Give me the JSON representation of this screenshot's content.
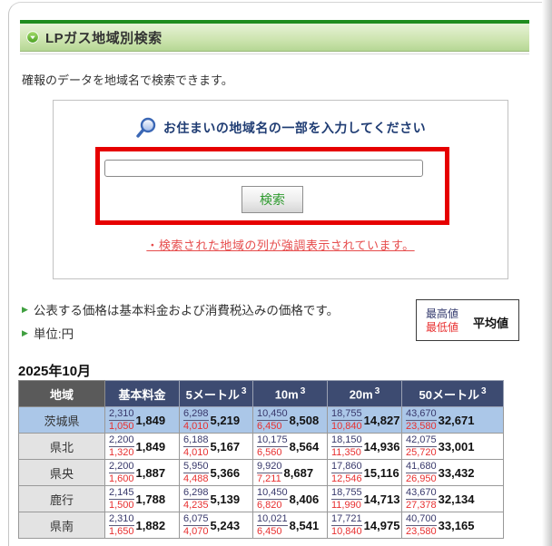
{
  "section": {
    "title": "LPガス地域別検索"
  },
  "intro": "確報のデータを地域名で検索できます。",
  "search": {
    "prompt": "お住まいの地域名の一部を入力してください",
    "input_value": "",
    "button_label": "検索",
    "note": "・検索された地域の列が強調表示されています。"
  },
  "notes": {
    "price": "公表する価格は基本料金および消費税込みの価格です。",
    "unit": "単位:円"
  },
  "legend": {
    "high": "最高値",
    "average": "平均値",
    "low": "最低値"
  },
  "period": "2025年10月",
  "table": {
    "region_header": "地域",
    "columns": [
      {
        "label": "基本料金",
        "sup": ""
      },
      {
        "label": "5メートル",
        "sup": "3"
      },
      {
        "label": "10m",
        "sup": "3"
      },
      {
        "label": "20m",
        "sup": "3"
      },
      {
        "label": "50メートル",
        "sup": "3"
      }
    ],
    "rows": [
      {
        "region": "茨城県",
        "highlight": true,
        "cells": [
          {
            "high": "2,310",
            "low": "1,050",
            "avg": "1,849"
          },
          {
            "high": "6,298",
            "low": "4,010",
            "avg": "5,219"
          },
          {
            "high": "10,450",
            "low": "6,450",
            "avg": "8,508"
          },
          {
            "high": "18,755",
            "low": "10,840",
            "avg": "14,827"
          },
          {
            "high": "43,670",
            "low": "23,580",
            "avg": "32,671"
          }
        ]
      },
      {
        "region": "県北",
        "highlight": false,
        "cells": [
          {
            "high": "2,200",
            "low": "1,320",
            "avg": "1,849"
          },
          {
            "high": "6,188",
            "low": "4,010",
            "avg": "5,167"
          },
          {
            "high": "10,175",
            "low": "6,560",
            "avg": "8,564"
          },
          {
            "high": "18,150",
            "low": "11,350",
            "avg": "14,936"
          },
          {
            "high": "42,075",
            "low": "25,720",
            "avg": "33,001"
          }
        ]
      },
      {
        "region": "県央",
        "highlight": false,
        "cells": [
          {
            "high": "2,200",
            "low": "1,600",
            "avg": "1,887"
          },
          {
            "high": "5,950",
            "low": "4,488",
            "avg": "5,366"
          },
          {
            "high": "9,920",
            "low": "7,211",
            "avg": "8,687"
          },
          {
            "high": "17,860",
            "low": "12,546",
            "avg": "15,116"
          },
          {
            "high": "41,680",
            "low": "26,950",
            "avg": "33,432"
          }
        ]
      },
      {
        "region": "鹿行",
        "highlight": false,
        "cells": [
          {
            "high": "2,145",
            "low": "1,500",
            "avg": "1,788"
          },
          {
            "high": "6,298",
            "low": "4,235",
            "avg": "5,139"
          },
          {
            "high": "10,450",
            "low": "6,820",
            "avg": "8,406"
          },
          {
            "high": "18,755",
            "low": "11,990",
            "avg": "14,713"
          },
          {
            "high": "43,670",
            "low": "27,378",
            "avg": "32,134"
          }
        ]
      },
      {
        "region": "県南",
        "highlight": false,
        "cells": [
          {
            "high": "2,310",
            "low": "1,650",
            "avg": "1,882"
          },
          {
            "high": "6,075",
            "low": "4,070",
            "avg": "5,243"
          },
          {
            "high": "10,021",
            "low": "6,450",
            "avg": "8,541"
          },
          {
            "high": "17,721",
            "low": "10,840",
            "avg": "14,975"
          },
          {
            "high": "40,700",
            "low": "23,580",
            "avg": "33,165"
          }
        ]
      }
    ]
  },
  "colors": {
    "header_green_dark": "#1f8c1f",
    "bar_gradient_top": "#e6f2d6",
    "bar_gradient_bottom": "#b5d794",
    "highlight_red_box": "#e60000",
    "high_value_navy": "#38386b",
    "low_value_red": "#e83030",
    "highlight_row_blue": "#abc7e8",
    "table_header_navy": "#3d4b71",
    "table_header_gray": "#5a5a5a",
    "button_text_green": "#2e9a2e",
    "note_link_red": "#e64c4c",
    "prompt_navy": "#1f3c73"
  }
}
